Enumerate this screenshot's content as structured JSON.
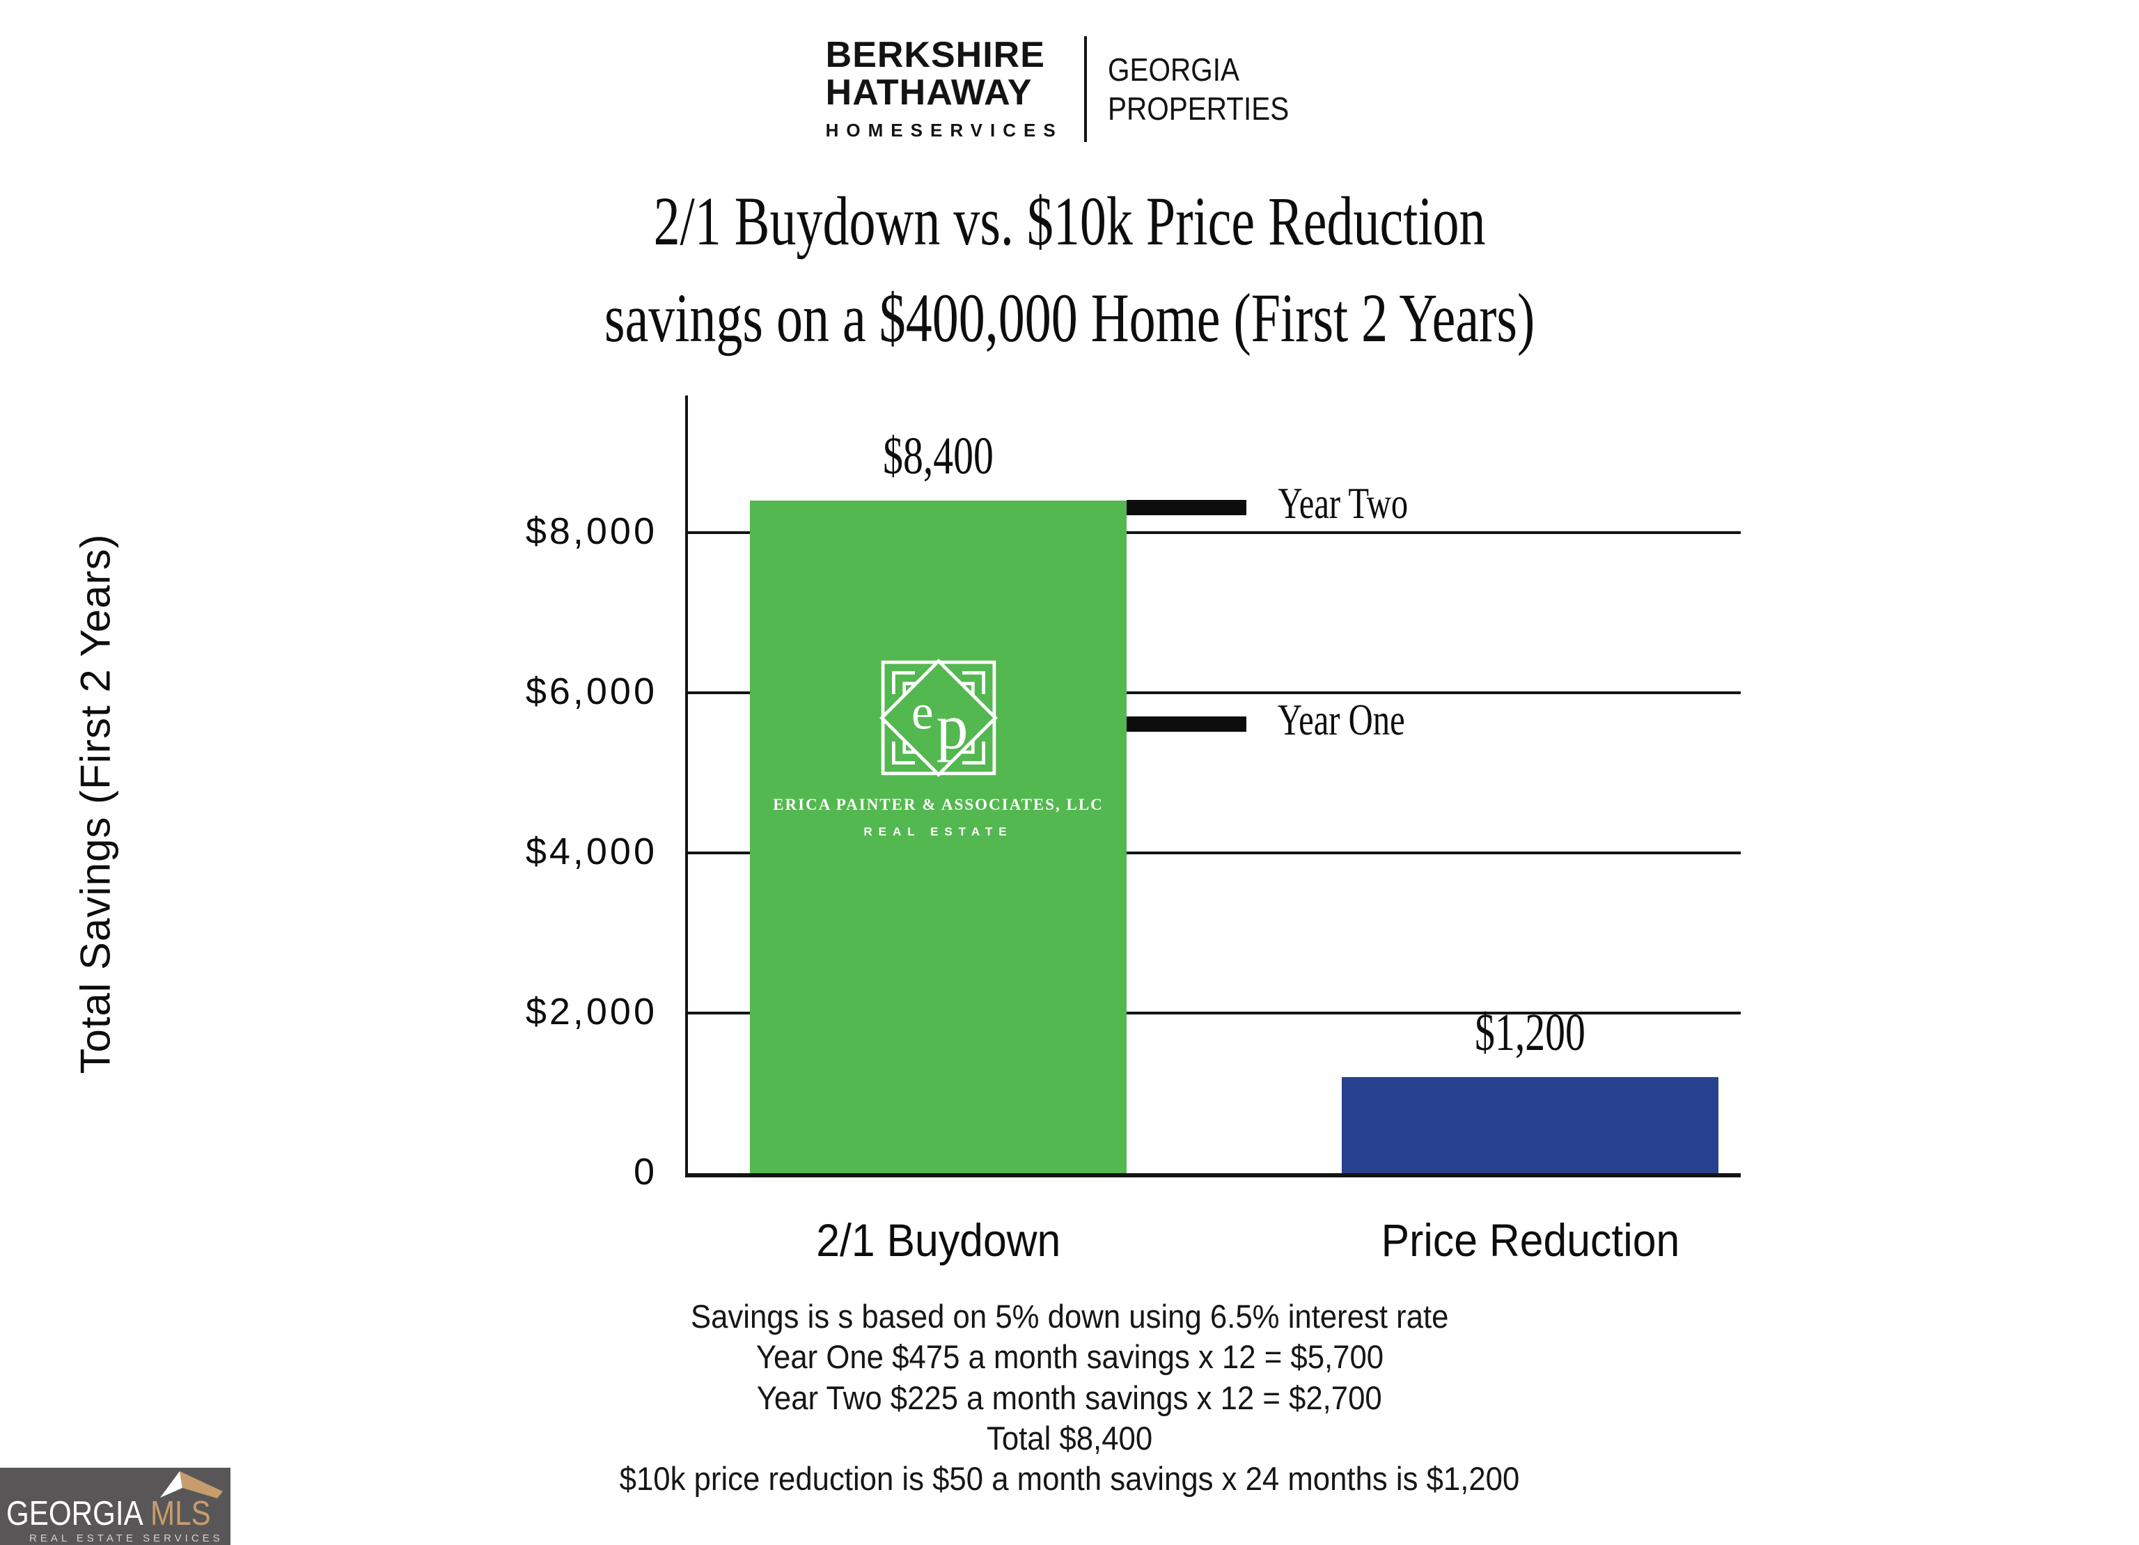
{
  "header": {
    "brand_line1": "BERKSHIRE",
    "brand_line2": "HATHAWAY",
    "brand_line3": "HOMESERVICES",
    "brand_right_line1": "GEORGIA",
    "brand_right_line2": "PROPERTIES"
  },
  "title": {
    "line1": "2/1 Buydown vs. $10k Price Reduction",
    "line2": "savings on a $400,000 Home (First 2 Years)"
  },
  "chart_data": {
    "type": "bar",
    "title": "2/1 Buydown vs. $10k Price Reduction savings on a $400,000 Home (First 2 Years)",
    "categories": [
      "2/1 Buydown",
      "Price Reduction"
    ],
    "values": [
      8400,
      1200
    ],
    "value_labels": [
      "$8,400",
      "$1,200"
    ],
    "bar_colors": [
      "#53b84f",
      "#28418e"
    ],
    "xlabel": "",
    "ylabel": "Total Savings (First 2 Years)",
    "ylim": [
      0,
      9700
    ],
    "grid": "horizontal",
    "legend_position": "none",
    "yticks": [
      {
        "value": 8000,
        "label": "$8,000"
      },
      {
        "value": 6000,
        "label": "$6,000"
      },
      {
        "value": 4000,
        "label": "$4,000"
      },
      {
        "value": 2000,
        "label": "$2,000"
      },
      {
        "value": 0,
        "label": "0"
      }
    ],
    "annotations": [
      {
        "label": "Year Two",
        "value": 8400,
        "bar": "2/1 Buydown"
      },
      {
        "label": "Year One",
        "value": 5700,
        "bar": "2/1 Buydown"
      }
    ]
  },
  "bar_logo": {
    "monogram_left": "e",
    "monogram_right": "p",
    "name_line": "ERICA PAINTER & ASSOCIATES, LLC",
    "sub_line": "REAL ESTATE"
  },
  "footnote": {
    "lines": [
      "Savings is s based on 5% down using 6.5% interest rate",
      "Year One $475 a month savings x 12 = $5,700",
      "Year Two $225 a month savings x 12 = $2,700",
      "Total $8,400",
      "$10k price reduction is $50 a month savings x 24 months is $1,200"
    ]
  },
  "mls_logo": {
    "text_primary": "GEORGIA",
    "text_secondary": "MLS",
    "subtext": "REAL ESTATE SERVICES",
    "bg_color": "#595657",
    "accent_color": "#c79d6d",
    "primary_color": "#ffffff"
  },
  "colors": {
    "axis": "#141414",
    "annotation": "#0d0d0d",
    "bar_green": "#53b84f",
    "bar_blue": "#28418e"
  }
}
